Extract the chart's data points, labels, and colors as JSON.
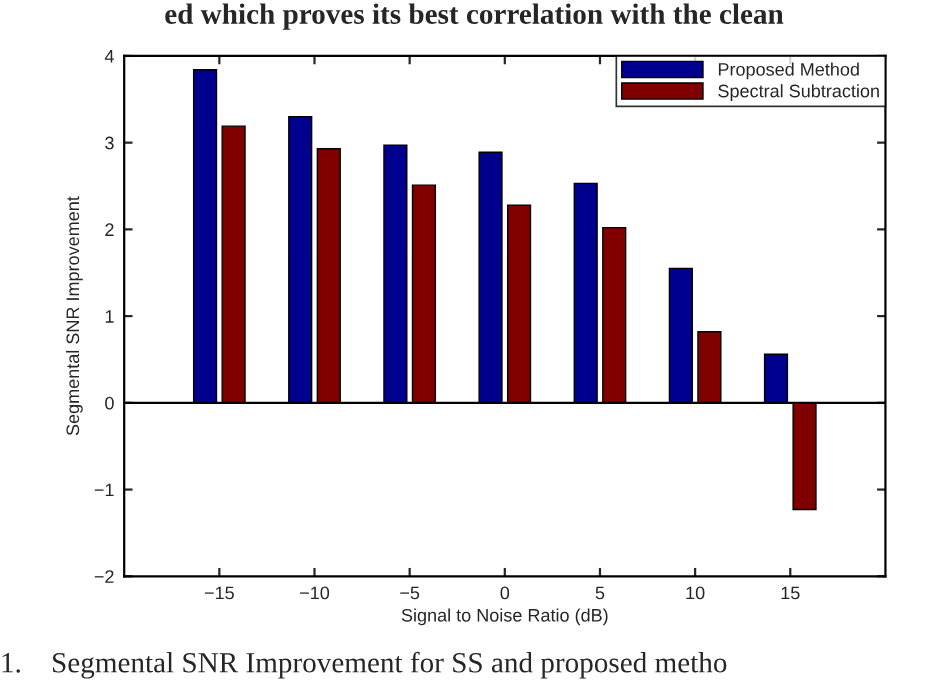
{
  "chart_data": {
    "type": "bar",
    "xlabel": "Signal to Noise Ratio (dB)",
    "ylabel": "Segmental SNR Improvement",
    "x": [
      -15,
      -10,
      -5,
      0,
      5,
      10,
      15
    ],
    "series": [
      {
        "name": "Proposed Method",
        "color": "#00008f",
        "values": [
          3.84,
          3.3,
          2.97,
          2.89,
          2.53,
          1.55,
          0.56
        ]
      },
      {
        "name": "Spectral Subtraction",
        "color": "#800000",
        "values": [
          3.19,
          2.93,
          2.51,
          2.28,
          2.02,
          0.82,
          -1.23
        ]
      }
    ],
    "xlim": [
      -20,
      20
    ],
    "xticks": [
      {
        "value": -15,
        "label": "−15"
      },
      {
        "value": -10,
        "label": "−10"
      },
      {
        "value": -5,
        "label": "−5"
      },
      0,
      5,
      10,
      15
    ],
    "ylim": [
      -2,
      4
    ],
    "yticks": [
      {
        "value": -2,
        "label": "−2"
      },
      {
        "value": -1,
        "label": "−1"
      },
      0,
      1,
      2,
      3,
      4
    ],
    "ref_lines": [
      {
        "axis": "y",
        "value": 0,
        "color": "#000000"
      }
    ],
    "legend": "top right",
    "grid": false,
    "annotations": [
      "ed which proves its best correlation with the clean",
      "1.    Segmental SNR Improvement for SS and proposed metho"
    ]
  }
}
